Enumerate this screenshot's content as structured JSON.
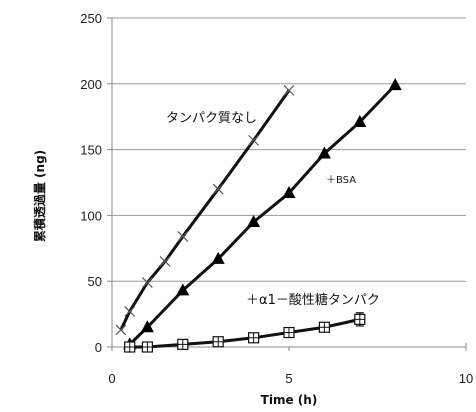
{
  "chart_data": {
    "type": "line",
    "title": "",
    "xlabel": "Time  (h)",
    "ylabel": "累積透過量 (ng)",
    "xlim": [
      0,
      10
    ],
    "ylim": [
      0,
      250
    ],
    "x_ticks": [
      0,
      5,
      10
    ],
    "y_ticks": [
      0,
      50,
      100,
      150,
      200,
      250
    ],
    "grid": "horizontal",
    "legend": "none",
    "series": [
      {
        "name": "タンパク質なし",
        "marker": "x",
        "x": [
          0.25,
          0.5,
          1,
          1.5,
          2,
          3,
          4,
          5
        ],
        "y": [
          13,
          27,
          49,
          65,
          84,
          120,
          157,
          195
        ]
      },
      {
        "name": "＋BSA",
        "marker": "triangle",
        "x": [
          0.5,
          1,
          2,
          3,
          4,
          5,
          6,
          7,
          8
        ],
        "y": [
          2,
          15,
          43,
          67,
          95,
          117,
          147,
          171,
          199
        ]
      },
      {
        "name": "＋α1－酸性糖タンパク",
        "marker": "square-cross",
        "x": [
          0.5,
          1,
          2,
          3,
          4,
          5,
          6,
          7
        ],
        "y": [
          0,
          0,
          2,
          4,
          7,
          11,
          15,
          21
        ],
        "error": [
          0,
          0,
          0,
          0,
          1,
          2,
          3,
          5
        ]
      }
    ]
  }
}
